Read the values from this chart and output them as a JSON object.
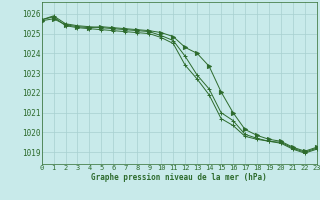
{
  "title": "Graphe pression niveau de la mer (hPa)",
  "background_color": "#c8eaea",
  "grid_color": "#a8d0d0",
  "line_color": "#2d6b2d",
  "xlim": [
    0,
    23
  ],
  "ylim": [
    1018.4,
    1026.6
  ],
  "yticks": [
    1019,
    1020,
    1021,
    1022,
    1023,
    1024,
    1025,
    1026
  ],
  "xticks": [
    0,
    1,
    2,
    3,
    4,
    5,
    6,
    7,
    8,
    9,
    10,
    11,
    12,
    13,
    14,
    15,
    16,
    17,
    18,
    19,
    20,
    21,
    22,
    23
  ],
  "series": [
    {
      "y": [
        1025.7,
        1025.9,
        1025.5,
        1025.4,
        1025.35,
        1025.3,
        1025.25,
        1025.2,
        1025.15,
        1025.1,
        1024.9,
        1024.65,
        1023.85,
        1022.9,
        1022.2,
        1021.0,
        1020.6,
        1019.9,
        1019.7,
        1019.55,
        1019.5,
        1019.2,
        1019.0,
        1019.2
      ],
      "marker": "+"
    },
    {
      "y": [
        1025.7,
        1025.85,
        1025.4,
        1025.3,
        1025.25,
        1025.2,
        1025.15,
        1025.1,
        1025.05,
        1025.0,
        1024.8,
        1024.5,
        1023.4,
        1022.7,
        1021.9,
        1020.7,
        1020.35,
        1019.8,
        1019.65,
        1019.55,
        1019.45,
        1019.15,
        1018.95,
        1019.15
      ],
      "marker": "+"
    },
    {
      "y": [
        1025.65,
        1025.75,
        1025.45,
        1025.35,
        1025.3,
        1025.35,
        1025.3,
        1025.25,
        1025.2,
        1025.15,
        1025.05,
        1024.85,
        1024.3,
        1024.0,
        1023.35,
        1022.05,
        1021.0,
        1020.15,
        1019.85,
        1019.65,
        1019.55,
        1019.25,
        1019.05,
        1019.25
      ],
      "marker": "4"
    }
  ]
}
